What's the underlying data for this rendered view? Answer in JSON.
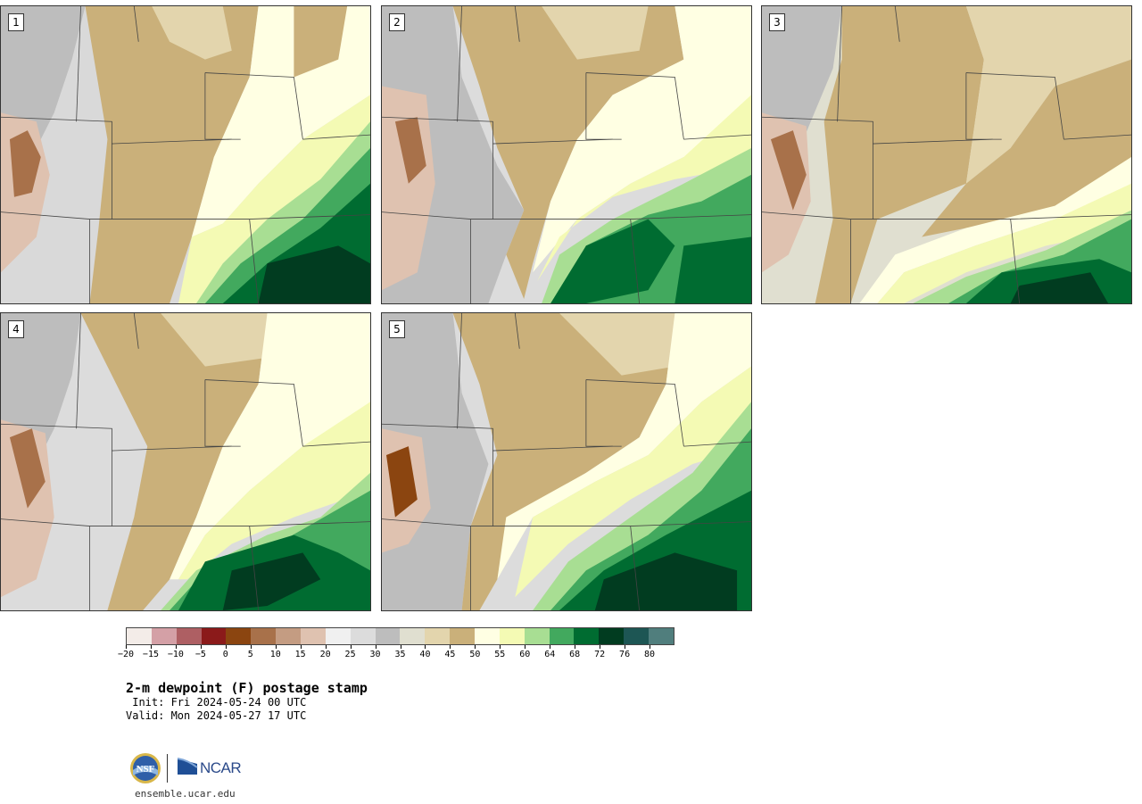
{
  "panels": [
    {
      "label": "1"
    },
    {
      "label": "2"
    },
    {
      "label": "3"
    },
    {
      "label": "4"
    },
    {
      "label": "5"
    }
  ],
  "colorbar": {
    "colors": [
      "#f3ece8",
      "#d4a0a6",
      "#ae5f63",
      "#8b1a1a",
      "#8b4510",
      "#a8714a",
      "#c49c82",
      "#dfc2b0",
      "#f0f0f0",
      "#dcdcdc",
      "#bdbdbd",
      "#e0dfd0",
      "#e3d5ad",
      "#cab07a",
      "#ffffe3",
      "#f4fab4",
      "#a8de93",
      "#42a95e",
      "#006c31",
      "#013c20",
      "#1d5654",
      "#507e7d"
    ],
    "tick_labels": [
      "−20",
      "−15",
      "−10",
      "−5",
      "0",
      "5",
      "10",
      "15",
      "20",
      "25",
      "30",
      "35",
      "40",
      "45",
      "50",
      "55",
      "60",
      "64",
      "68",
      "72",
      "76",
      "80"
    ]
  },
  "title": "2-m dewpoint (F) postage stamp",
  "init": " Init: Fri 2024-05-24 00 UTC",
  "valid": "Valid: Mon 2024-05-27 17 UTC",
  "logos": {
    "nsf": "NSF",
    "ncar": "NCAR"
  },
  "url": "ensemble.ucar.edu"
}
